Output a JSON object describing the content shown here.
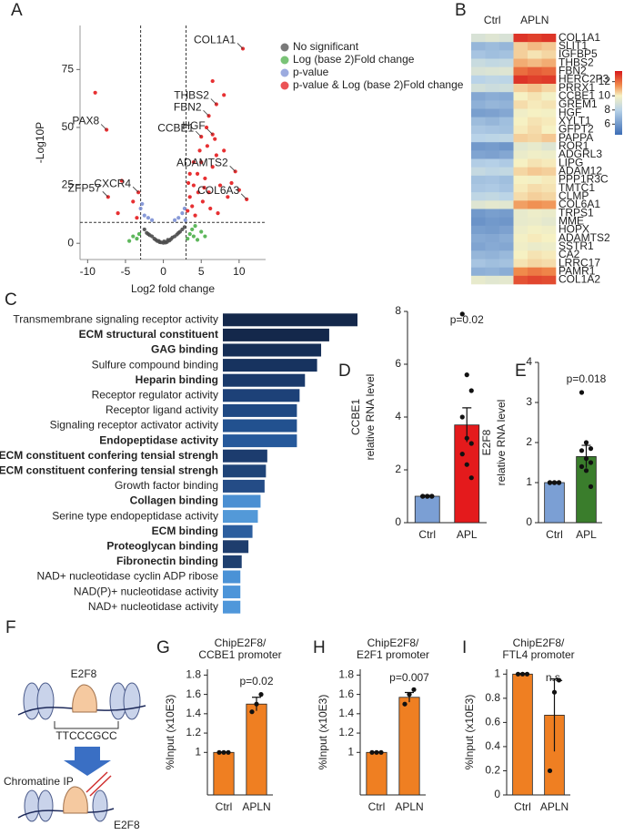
{
  "chart_data": [
    {
      "type": "scatter",
      "panel": "A",
      "xlabel": "Log2 fold change",
      "ylabel": "-Log10P",
      "xlim": [
        -11,
        13.5
      ],
      "ylim": [
        -7,
        94
      ],
      "xticks": [
        -10,
        -5,
        0,
        5,
        10
      ],
      "yticks": [
        0,
        25,
        50,
        75
      ],
      "vlines": [
        -3,
        3
      ],
      "hline": 9,
      "series": [
        {
          "name": "No significant",
          "color": "#4d4d4d",
          "x": [
            -2.5,
            -2.0,
            -1.5,
            -1.0,
            -0.5,
            0.0,
            0.5,
            1.0,
            1.5,
            2.0,
            2.5,
            2.8,
            -1.8,
            1.8,
            -0.8,
            0.8,
            0.3,
            -0.3,
            1.2,
            -1.2,
            2.2,
            -2.2,
            0.1,
            0.6,
            -0.6
          ],
          "y": [
            6,
            4,
            3,
            1.5,
            0.5,
            0.2,
            0.6,
            1.8,
            3,
            4.5,
            6,
            7,
            3.5,
            3.8,
            1,
            1.2,
            0.3,
            0.4,
            2.5,
            2,
            5,
            4.5,
            0.8,
            1.5,
            1.0
          ]
        },
        {
          "name": "Log (base 2)Fold change",
          "color": "#4daf4a",
          "x": [
            -4.5,
            -4,
            -3.5,
            3.2,
            3.5,
            4,
            4.5,
            5,
            3.8,
            4.2,
            -3.2,
            5.5
          ],
          "y": [
            1,
            3,
            2,
            2,
            4,
            3,
            1.5,
            5,
            6,
            7.5,
            4,
            3
          ]
        },
        {
          "name": "p-value",
          "color": "#7b8fd4",
          "x": [
            -3,
            -2.5,
            -2,
            -1.5,
            2.5,
            2.8,
            2,
            -2.8,
            2.9,
            1.5
          ],
          "y": [
            15,
            12,
            11,
            10,
            13,
            15,
            11,
            17,
            10,
            10
          ]
        },
        {
          "name": "p-value & Log (base 2)Fold change",
          "color": "#e41a1c",
          "x": [
            10.5,
            7,
            6,
            5,
            6.5,
            9.5,
            11,
            -7.5,
            -7.3,
            -3.3,
            -9,
            -5.5,
            -4,
            -3.5,
            -6,
            3.5,
            4,
            4.5,
            5,
            5.5,
            6,
            6.5,
            7,
            7.5,
            8,
            8.5,
            3.2,
            3.8,
            4.2,
            5.2,
            6.2,
            7.2,
            4.8,
            5.8,
            6.8,
            3.5,
            4,
            8,
            6.5,
            9,
            4.6,
            5.4,
            3.3,
            5.7,
            10
          ],
          "y": [
            84,
            60,
            55,
            46,
            47,
            31,
            19,
            49,
            20,
            22,
            65,
            27,
            18,
            11,
            13,
            20,
            25,
            30,
            35,
            28,
            22,
            33,
            38,
            25,
            40,
            20,
            14,
            16,
            12,
            18,
            15,
            13,
            40,
            42,
            45,
            30,
            35,
            64,
            70,
            26,
            22,
            24,
            26,
            50,
            23
          ]
        }
      ],
      "annotations": [
        {
          "text": "COL1A1",
          "x": 10.5,
          "y": 84
        },
        {
          "text": "THBS2",
          "x": 7,
          "y": 60
        },
        {
          "text": "FBN2",
          "x": 6,
          "y": 55
        },
        {
          "text": "CCBE1",
          "x": 5,
          "y": 46
        },
        {
          "text": "HGF",
          "x": 6.5,
          "y": 47
        },
        {
          "text": "ADAMTS2",
          "x": 9.5,
          "y": 31
        },
        {
          "text": "COL6A3",
          "x": 11,
          "y": 19
        },
        {
          "text": "PAX8",
          "x": -7.5,
          "y": 49
        },
        {
          "text": "ZFP57",
          "x": -7.3,
          "y": 20
        },
        {
          "text": "CXCR4",
          "x": -3.3,
          "y": 22
        }
      ]
    },
    {
      "type": "heatmap",
      "panel": "B",
      "groups": [
        "Ctrl",
        "APLN"
      ],
      "rows": [
        "COL1A1",
        "SLIT1",
        "IGFBP5",
        "THBS2",
        "FBN2",
        "HERC2P3",
        "PRRX1",
        "CCBE1",
        "GREM1",
        "HGF",
        "XYLT1",
        "GFPT2",
        "PAPPA",
        "ROR1",
        "ADGRL3",
        "LIPG",
        "ADAM12",
        "PPP1R3C",
        "TMTC1",
        "CLMP",
        "COL6A1",
        "TRPS1",
        "MME",
        "HOPX",
        "ADAMTS2",
        "SSTR1",
        "CA2",
        "LRRC17",
        "PAMR1",
        "COL1A2"
      ],
      "values": [
        [
          9,
          9.2,
          9,
          13,
          12.8,
          13
        ],
        [
          7,
          7.2,
          7,
          10.5,
          10.8,
          10.6
        ],
        [
          7.5,
          7.3,
          7.4,
          10.5,
          10.2,
          10.4
        ],
        [
          8.5,
          8.3,
          8.4,
          11,
          10.8,
          11
        ],
        [
          9,
          9.1,
          9.2,
          12,
          12.3,
          12.1
        ],
        [
          8,
          8.2,
          8.1,
          13,
          12.8,
          12.9
        ],
        [
          8.8,
          8.6,
          8.7,
          10.5,
          10.7,
          10.4
        ],
        [
          6.5,
          6.7,
          6.6,
          10,
          10.2,
          9.9
        ],
        [
          6.8,
          7,
          6.9,
          10.3,
          10.1,
          10.2
        ],
        [
          6.2,
          6.3,
          6.5,
          9.8,
          10,
          9.9
        ],
        [
          7.2,
          7,
          7.3,
          10,
          10.2,
          10.1
        ],
        [
          7.6,
          7.5,
          7.4,
          10.1,
          10.3,
          10
        ],
        [
          8,
          8.1,
          8.2,
          10.5,
          10.4,
          10.6
        ],
        [
          6,
          6.1,
          5.9,
          9.3,
          9.5,
          9.2
        ],
        [
          6.4,
          6.3,
          6.5,
          9.6,
          9.8,
          9.7
        ],
        [
          7.8,
          7.9,
          7.7,
          10,
          10.2,
          10.1
        ],
        [
          8.4,
          8.2,
          8.3,
          10.4,
          10.6,
          10.5
        ],
        [
          7.4,
          7.5,
          7.3,
          10,
          9.9,
          10.1
        ],
        [
          7.6,
          7.7,
          7.5,
          10.1,
          10.3,
          10.2
        ],
        [
          8.2,
          8.3,
          8.1,
          10.3,
          10.5,
          10.4
        ],
        [
          9.2,
          9.4,
          9.3,
          11.2,
          11.4,
          11.3
        ],
        [
          6,
          6.2,
          6.1,
          9.5,
          9.7,
          9.6
        ],
        [
          5.8,
          6,
          5.9,
          9.5,
          9.6,
          9.4
        ],
        [
          6.2,
          6.1,
          6.3,
          9.7,
          9.9,
          9.8
        ],
        [
          6.6,
          6.5,
          6.7,
          9.9,
          10.1,
          10
        ],
        [
          6.4,
          6.6,
          6.5,
          9.8,
          9.6,
          9.7
        ],
        [
          7,
          6.9,
          7.1,
          10,
          10.2,
          10.1
        ],
        [
          7.5,
          7.3,
          7.4,
          10.2,
          10.4,
          10.3
        ],
        [
          6.8,
          6.9,
          6.7,
          11.5,
          11.8,
          11.6
        ],
        [
          9.5,
          9.3,
          9.4,
          12.5,
          12.7,
          12.6
        ]
      ],
      "colorscale": [
        {
          "value": 4.5,
          "color": "#3d6db5"
        },
        {
          "value": 8,
          "color": "#b9d3e8"
        },
        {
          "value": 10,
          "color": "#f6f1c3"
        },
        {
          "value": 11.5,
          "color": "#f08a4b"
        },
        {
          "value": 13.5,
          "color": "#d7191c"
        }
      ],
      "clim": [
        4.5,
        13.5
      ],
      "cticks": [
        6,
        8,
        10,
        12
      ]
    },
    {
      "type": "barh",
      "panel": "C",
      "categories": [
        "Transmembrane signaling receptor activity",
        "ECM structural constituent",
        "GAG binding",
        "Sulfure compound binding",
        "Heparin binding",
        "Receptor regulator activity",
        "Receptor ligand activity",
        "Signaling receptor activator activity",
        "Endopeptidase activity",
        "ECM constituent confering tensial strengh",
        "ECM constituent confering tensial strengh",
        "Growth factor binding",
        "Collagen binding",
        "Serine type endopeptidase activity",
        "ECM binding",
        "Proteoglycan binding",
        "Fibronectin binding",
        "NAD+ nucleotidase cyclin ADP ribose",
        "NAD(P)+ nucleotidase activity",
        "NAD+ nucleotidase activity"
      ],
      "values": [
        10,
        7.9,
        7.3,
        7.0,
        6.1,
        5.7,
        5.5,
        5.5,
        5.5,
        3.3,
        3.2,
        3.1,
        2.8,
        2.6,
        2.2,
        1.9,
        1.4,
        1.3,
        1.3,
        1.3
      ],
      "colors": [
        "#14284b",
        "#14284b",
        "#152e56",
        "#17335f",
        "#1a3a6b",
        "#1d4178",
        "#1f4983",
        "#22518f",
        "#26599b",
        "#1c3c6e",
        "#1f4478",
        "#244c86",
        "#4a8fd2",
        "#5399d8",
        "#2c5e9e",
        "#1e3d6d",
        "#1f4070",
        "#4a92d6",
        "#4d95d9",
        "#4f97da"
      ],
      "bold": [
        false,
        true,
        true,
        false,
        true,
        false,
        false,
        false,
        true,
        true,
        true,
        false,
        true,
        false,
        true,
        true,
        true,
        false,
        false,
        false
      ]
    },
    {
      "type": "bar",
      "panel": "D",
      "ylabel": [
        "CCBE1",
        "relative RNA level"
      ],
      "categories": [
        "Ctrl",
        "APL"
      ],
      "values": [
        1,
        3.7
      ],
      "errors": [
        0.03,
        0.65
      ],
      "colors": [
        "#7b9fd4",
        "#e41a1c"
      ],
      "points": [
        [
          1,
          1,
          1,
          1,
          1,
          1,
          1,
          1,
          1
        ],
        [
          7.9,
          5.6,
          5.0,
          4.0,
          3.2,
          3.0,
          2.6,
          2.2,
          1.7
        ]
      ],
      "ylim": [
        0,
        8
      ],
      "yticks": [
        0,
        2,
        4,
        6,
        8
      ],
      "annotation": "p=0.02"
    },
    {
      "type": "bar",
      "panel": "E",
      "ylabel": [
        "E2F8",
        "relative RNA level"
      ],
      "categories": [
        "Ctrl",
        "APL"
      ],
      "values": [
        1,
        1.65
      ],
      "errors": [
        0.02,
        0.28
      ],
      "colors": [
        "#7b9fd4",
        "#3a7d2c"
      ],
      "points": [
        [
          1,
          1,
          1,
          1,
          1,
          1,
          1,
          1,
          1
        ],
        [
          3.25,
          2.0,
          1.85,
          1.8,
          1.6,
          1.5,
          1.4,
          1.3,
          0.9
        ]
      ],
      "ylim": [
        0,
        4
      ],
      "yticks": [
        0,
        1,
        2,
        3,
        4
      ],
      "annotation": "p=0.018"
    },
    {
      "type": "bar",
      "panel": "G",
      "title": [
        "ChipE2F8/",
        "CCBE1 promoter"
      ],
      "ylabel": [
        "%Input (x10E3)"
      ],
      "categories": [
        "Ctrl",
        "APLN"
      ],
      "values": [
        1,
        1.5
      ],
      "errors": [
        0.005,
        0.07
      ],
      "colors": [
        "#ef7f22",
        "#ef7f22"
      ],
      "points": [
        [
          1,
          1,
          1
        ],
        [
          1.42,
          1.5,
          1.6
        ]
      ],
      "ylim": [
        0.56,
        1.86
      ],
      "yticks": [
        1,
        1.2,
        1.4,
        1.6,
        1.8
      ],
      "annotation": "p=0.02"
    },
    {
      "type": "bar",
      "panel": "H",
      "title": [
        "ChipE2F8/",
        "E2F1 promoter"
      ],
      "ylabel": [
        "%Input (x10E3)"
      ],
      "categories": [
        "Ctrl",
        "APLN"
      ],
      "values": [
        1,
        1.57
      ],
      "errors": [
        0.005,
        0.05
      ],
      "colors": [
        "#ef7f22",
        "#ef7f22"
      ],
      "points": [
        [
          1,
          1,
          1
        ],
        [
          1.5,
          1.6,
          1.65
        ]
      ],
      "ylim": [
        0.56,
        1.86
      ],
      "yticks": [
        1,
        1.2,
        1.4,
        1.6,
        1.8
      ],
      "annotation": "p=0.007"
    },
    {
      "type": "bar",
      "panel": "I",
      "title": [
        "ChipE2F8/",
        "FTL4 promoter"
      ],
      "ylabel": [
        "%Input (x10E3)"
      ],
      "categories": [
        "Ctrl",
        "APLN"
      ],
      "values": [
        1,
        0.66
      ],
      "errors": [
        0.005,
        0.3
      ],
      "colors": [
        "#ef7f22",
        "#ef7f22"
      ],
      "points": [
        [
          1,
          1,
          1
        ],
        [
          0.2,
          0.85,
          0.95
        ]
      ],
      "ylim": [
        0,
        1.04
      ],
      "yticks": [
        0,
        0.2,
        0.4,
        0.6,
        0.8,
        1
      ],
      "annotation": "n.s."
    }
  ],
  "diagram": {
    "panel": "F",
    "protein": "E2F8",
    "motif": "TTCCCGCC",
    "step": "Chromatine IP",
    "label": "E2F8"
  }
}
